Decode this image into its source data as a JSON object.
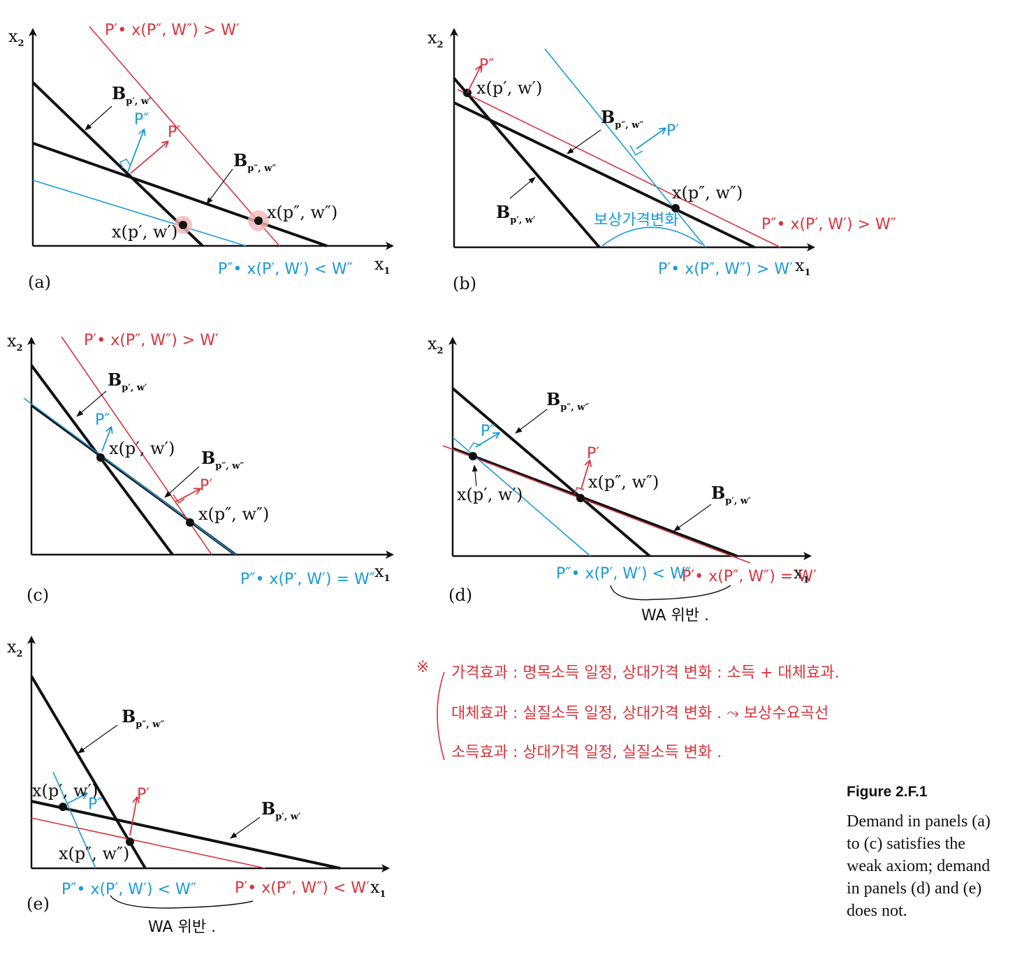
{
  "axis_labels": {
    "x_main": "x",
    "x_sub": "1",
    "y_main": "x",
    "y_sub": "2"
  },
  "budget_labels": {
    "b_main": "B",
    "bpw_sub": "p′, w′",
    "bppww_sub": "p″, w″"
  },
  "demand_labels": {
    "x_pw": "x(p′, w′)",
    "x_ppww": "x(p″, w″)"
  },
  "price_labels": {
    "p_prime": "P′",
    "p_dprime": "P″"
  },
  "panels": {
    "a": {
      "label": "(a)",
      "red_ineq": "P′• x(P″, W″) > W′",
      "blue_ineq": "P″• x(P′, W′) < W″"
    },
    "b": {
      "label": "(b)",
      "red_ineq": "P″• x(P′, W′) > W″",
      "blue_ineq": "P′• x(P″, W″) > W′",
      "blue_note": "보상가격변화"
    },
    "c": {
      "label": "(c)",
      "red_ineq": "P′• x(P″, W″) > W′",
      "blue_ineq": "P″• x(P′, W′) = W″"
    },
    "d": {
      "label": "(d)",
      "blue_ineq": "P″• x(P′, W′) < W″",
      "red_ineq": "P′• x(P″, W″) = W′",
      "violation": "WA 위반 ."
    },
    "e": {
      "label": "(e)",
      "blue_ineq": "P″• x(P′, W′) < W″",
      "red_ineq": "P′• x(P″, W″) < W′",
      "violation": "WA 위반 ."
    }
  },
  "notes": {
    "star": "※",
    "line1": "가격효과 : 명목소득 일정, 상대가격 변화 : 소득 + 대체효과.",
    "line2": "대체효과 : 실질소득 일정, 상대가격 변화 . ⤳ 보상수요곡선",
    "line3": "소득효과 : 상대가격 일정, 실질소득 변화 ."
  },
  "caption": {
    "title": "Figure 2.F.1",
    "body": "Demand in panels (a)\nto (c) satisfies the\nweak axiom; demand\nin panels (d) and (e)\ndoes not."
  },
  "colors": {
    "black": "#111111",
    "red": "#d8343a",
    "blue": "#1a9ad6",
    "highlight": "#f3b6b6"
  }
}
